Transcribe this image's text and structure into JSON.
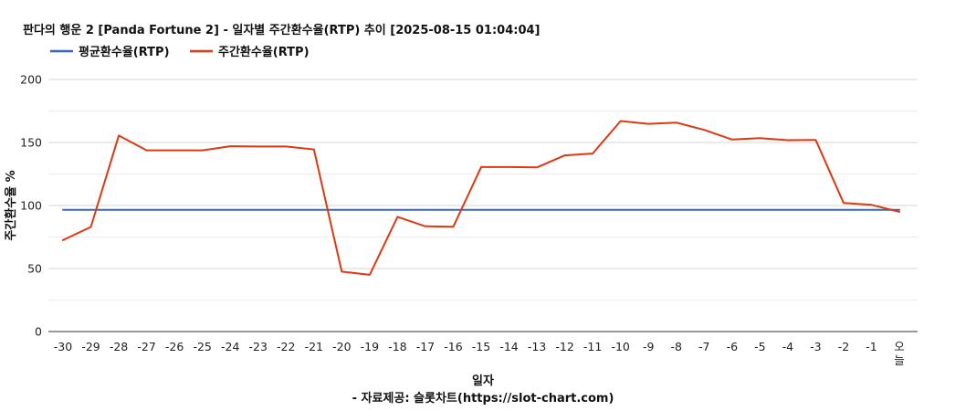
{
  "chart_data": {
    "type": "line",
    "title": "판다의 행운 2 [Panda Fortune 2] - 일자별 주간환수율(RTP) 추이 [2025-08-15 01:04:04]",
    "xlabel": "일자",
    "ylabel": "주간환수율 %",
    "source": "- 자료제공: 슬롯차트(https://slot-chart.com)",
    "categories": [
      "-30",
      "-29",
      "-28",
      "-27",
      "-26",
      "-25",
      "-24",
      "-23",
      "-22",
      "-21",
      "-20",
      "-19",
      "-18",
      "-17",
      "-16",
      "-15",
      "-14",
      "-13",
      "-12",
      "-11",
      "-10",
      "-9",
      "-8",
      "-7",
      "-6",
      "-5",
      "-4",
      "-3",
      "-2",
      "-1",
      "오늘"
    ],
    "ylim": [
      0,
      200
    ],
    "yticks": [
      0,
      50,
      100,
      150,
      200
    ],
    "grid": true,
    "legend_position": "top-left",
    "series": [
      {
        "name": "평균환수율(RTP)",
        "color": "#3366cc",
        "values": [
          96.5,
          96.5,
          96.5,
          96.5,
          96.5,
          96.5,
          96.5,
          96.5,
          96.5,
          96.5,
          96.5,
          96.5,
          96.5,
          96.5,
          96.5,
          96.5,
          96.5,
          96.5,
          96.5,
          96.5,
          96.5,
          96.5,
          96.5,
          96.5,
          96.5,
          96.5,
          96.5,
          96.5,
          96.5,
          96.5,
          96.5
        ]
      },
      {
        "name": "주간환수율(RTP)",
        "color": "#dc3912",
        "values": [
          72.5,
          83,
          155.5,
          143.8,
          143.8,
          143.8,
          147,
          146.8,
          146.8,
          144.5,
          47.5,
          45,
          91,
          83.5,
          83.2,
          130.5,
          130.5,
          130.2,
          139.8,
          141.2,
          167,
          164.8,
          165.8,
          160,
          152.3,
          153.5,
          151.8,
          152,
          102,
          100.5,
          95
        ]
      }
    ]
  }
}
